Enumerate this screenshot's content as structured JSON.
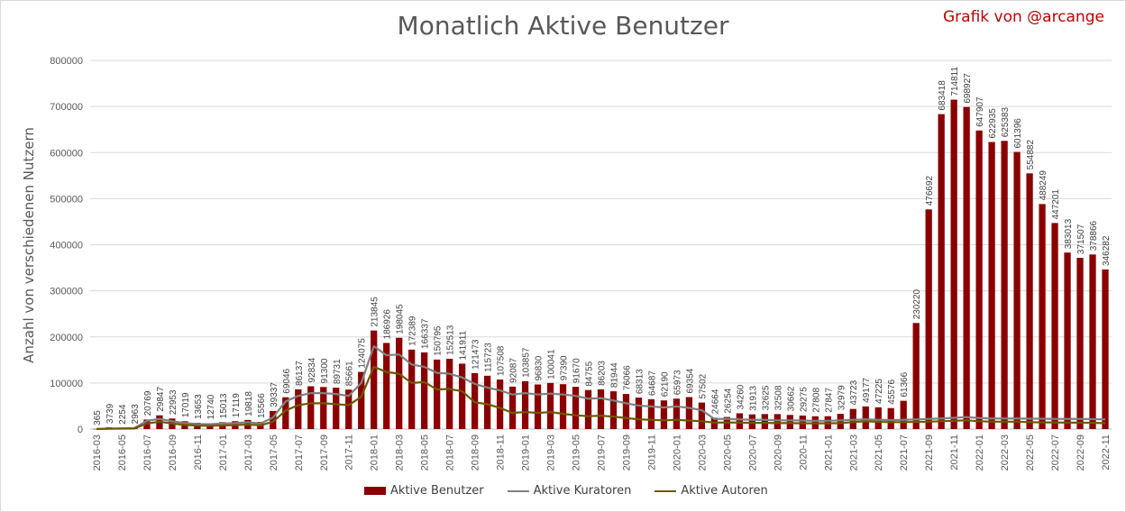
{
  "title": "Monatlich Aktive Benutzer",
  "credit": "Grafik von @arcange",
  "colors": {
    "users": "#8b0000",
    "curators": "#808080",
    "authors": "#6b5a00"
  },
  "chart_data": {
    "type": "bar",
    "ylabel": "Anzahl von verschiedenen Nutzern",
    "xlabel": "",
    "ylim": [
      0,
      800000
    ],
    "yticks": [
      0,
      100000,
      200000,
      300000,
      400000,
      500000,
      600000,
      700000,
      800000
    ],
    "legend_position": "bottom",
    "grid": "horizontal",
    "x_tick_labels": [
      "2016-03",
      "2016-05",
      "2016-07",
      "2016-09",
      "2016-11",
      "2017-01",
      "2017-03",
      "2017-05",
      "2017-07",
      "2017-09",
      "2017-11",
      "2018-01",
      "2018-03",
      "2018-05",
      "2018-07",
      "2018-09",
      "2018-11",
      "2019-01",
      "2019-03",
      "2019-05",
      "2019-07",
      "2019-09",
      "2019-11",
      "2020-01",
      "2020-03",
      "2020-05",
      "2020-07",
      "2020-09",
      "2020-11",
      "2021-01",
      "2021-03",
      "2021-05",
      "2021-07",
      "2021-09",
      "2021-11",
      "2022-01",
      "2022-03",
      "2022-05",
      "2022-07",
      "2022-09",
      "2022-11"
    ],
    "categories": [
      "2016-03",
      "2016-04",
      "2016-05",
      "2016-06",
      "2016-07",
      "2016-08",
      "2016-09",
      "2016-10",
      "2016-11",
      "2016-12",
      "2017-01",
      "2017-02",
      "2017-03",
      "2017-04",
      "2017-05",
      "2017-06",
      "2017-07",
      "2017-08",
      "2017-09",
      "2017-10",
      "2017-11",
      "2017-12",
      "2018-01",
      "2018-02",
      "2018-03",
      "2018-04",
      "2018-05",
      "2018-06",
      "2018-07",
      "2018-08",
      "2018-09",
      "2018-10",
      "2018-11",
      "2018-12",
      "2019-01",
      "2019-02",
      "2019-03",
      "2019-04",
      "2019-05",
      "2019-06",
      "2019-07",
      "2019-08",
      "2019-09",
      "2019-10",
      "2019-11",
      "2019-12",
      "2020-01",
      "2020-02",
      "2020-03",
      "2020-04",
      "2020-05",
      "2020-06",
      "2020-07",
      "2020-08",
      "2020-09",
      "2020-10",
      "2020-11",
      "2020-12",
      "2021-01",
      "2021-02",
      "2021-03",
      "2021-04",
      "2021-05",
      "2021-06",
      "2021-07",
      "2021-08",
      "2021-09",
      "2021-10",
      "2021-11",
      "2021-12",
      "2022-01",
      "2022-02",
      "2022-03",
      "2022-04",
      "2022-05",
      "2022-06",
      "2022-07",
      "2022-08",
      "2022-09",
      "2022-10",
      "2022-11"
    ],
    "series": [
      {
        "name": "Aktive Benutzer",
        "kind": "bar",
        "values": [
          365,
          3739,
          2254,
          2963,
          20769,
          29847,
          22953,
          17019,
          13653,
          12740,
          15013,
          17119,
          19818,
          15566,
          39337,
          69046,
          86137,
          92834,
          91300,
          89731,
          85661,
          124075,
          213845,
          186926,
          198045,
          172389,
          166337,
          150795,
          152513,
          141911,
          121473,
          115723,
          107508,
          92087,
          103857,
          96830,
          100041,
          97390,
          91670,
          84755,
          86203,
          81944,
          76066,
          68313,
          64687,
          62190,
          65973,
          69354,
          57502,
          24664,
          26254,
          34260,
          31913,
          32625,
          32508,
          30662,
          29275,
          27808,
          27847,
          32979,
          43723,
          49177,
          47225,
          45576,
          61366,
          230220,
          476692,
          683418,
          714811,
          698927,
          647907,
          622935,
          625383,
          601396,
          554882,
          488249,
          447201,
          383013,
          371507,
          378866,
          346282
        ]
      },
      {
        "name": "Aktive Kuratoren",
        "kind": "line",
        "values": [
          300,
          1000,
          1500,
          2000,
          18000,
          22000,
          17000,
          13000,
          11000,
          10500,
          12000,
          13000,
          15000,
          12000,
          25000,
          60000,
          72000,
          78000,
          78000,
          76000,
          72000,
          100000,
          180000,
          160000,
          162000,
          140000,
          135000,
          122000,
          120000,
          112000,
          98000,
          90000,
          84000,
          75000,
          78000,
          75000,
          77000,
          75000,
          72000,
          66000,
          67000,
          62000,
          56000,
          51000,
          49000,
          47000,
          49000,
          46000,
          41000,
          22000,
          22000,
          21000,
          20000,
          20000,
          19000,
          19000,
          18500,
          18000,
          18000,
          19000,
          20000,
          21000,
          20000,
          19500,
          20000,
          21000,
          22000,
          23000,
          24500,
          26000,
          24000,
          23000,
          23000,
          23000,
          22500,
          22500,
          22000,
          22000,
          22000,
          21500,
          21000
        ]
      },
      {
        "name": "Aktive Autoren",
        "kind": "line",
        "values": [
          150,
          800,
          1000,
          1200,
          12000,
          16000,
          12000,
          9000,
          7500,
          7000,
          8000,
          8500,
          10000,
          8000,
          16000,
          40000,
          52000,
          56000,
          56000,
          54000,
          52000,
          70000,
          135000,
          124000,
          120000,
          100000,
          102000,
          86000,
          87000,
          82000,
          58000,
          54000,
          46000,
          35000,
          37000,
          35000,
          37000,
          33000,
          30000,
          28000,
          29000,
          27000,
          24000,
          21000,
          20000,
          19000,
          20000,
          18500,
          17000,
          14000,
          14500,
          14000,
          13500,
          13500,
          13000,
          13000,
          12500,
          12500,
          12500,
          13000,
          15000,
          17000,
          15500,
          15000,
          15000,
          15500,
          16000,
          17000,
          18000,
          19000,
          17000,
          16000,
          16000,
          16000,
          15000,
          14500,
          14500,
          14000,
          14000,
          13500,
          13000
        ]
      }
    ]
  }
}
